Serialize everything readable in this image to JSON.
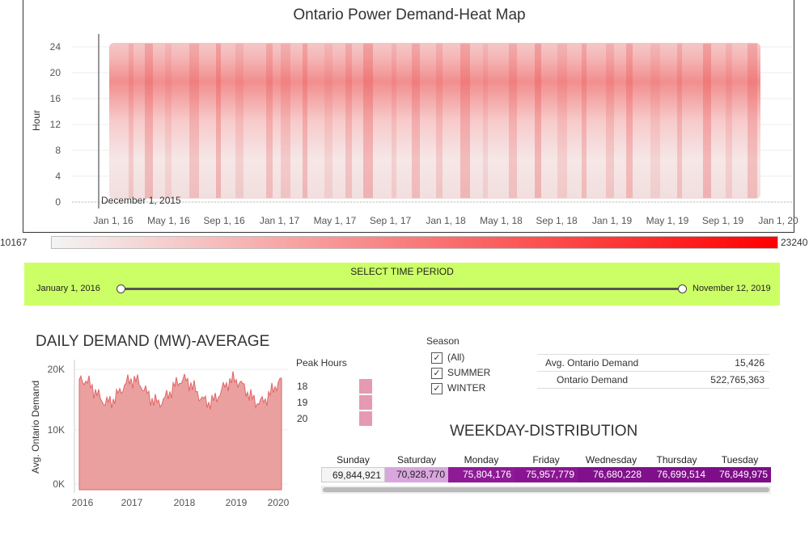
{
  "heatmap": {
    "title": "Ontario Power Demand-Heat Map",
    "y_axis_label": "Hour",
    "y_ticks": [
      "24",
      "20",
      "16",
      "12",
      "8",
      "4",
      "0"
    ],
    "x_ticks": [
      "Jan 1, 16",
      "May 1, 16",
      "Sep 1, 16",
      "Jan 1, 17",
      "May 1, 17",
      "Sep 1, 17",
      "Jan 1, 18",
      "May 1, 18",
      "Sep 1, 18",
      "Jan 1, 19",
      "May 1, 19",
      "Sep 1, 19",
      "Jan 1, 20"
    ],
    "reference_label": "December 1, 2015",
    "color_low": "#f4f4f4",
    "color_high": "#ff0000"
  },
  "color_legend": {
    "min": "10167",
    "max": "23240"
  },
  "time_filter": {
    "title": "SELECT TIME PERIOD",
    "start": "January 1, 2016",
    "end": "November 12, 2019",
    "panel_color": "#ccff66"
  },
  "daily_demand": {
    "title": "DAILY DEMAND (MW)-AVERAGE",
    "y_axis_label": "Avg. Ontario Demand",
    "y_ticks": [
      "20K",
      "10K",
      "0K"
    ],
    "x_ticks": [
      "2016",
      "2017",
      "2018",
      "2019",
      "2020"
    ],
    "area_color": "#eba0a0",
    "line_color": "#e06666"
  },
  "peak_hours": {
    "title": "Peak Hours",
    "items": [
      "18",
      "19",
      "20"
    ],
    "box_color": "#e59ab2"
  },
  "season_filter": {
    "title": "Season",
    "options": [
      {
        "label": "(All)",
        "checked": true
      },
      {
        "label": "SUMMER",
        "checked": true
      },
      {
        "label": "WINTER",
        "checked": true
      }
    ]
  },
  "summary": [
    {
      "label": "Avg. Ontario Demand",
      "value": "15,426"
    },
    {
      "label": "Ontario Demand",
      "value": "522,765,363"
    }
  ],
  "weekday": {
    "title": "WEEKDAY-DISTRIBUTION",
    "days": [
      {
        "day": "Sunday",
        "value": "69,844,921",
        "color": "#f4f4f4",
        "text": "#222"
      },
      {
        "day": "Saturday",
        "value": "70,928,770",
        "color": "#d9a6dd",
        "text": "#222"
      },
      {
        "day": "Monday",
        "value": "75,804,176",
        "color": "#8e1a96",
        "text": "#ffffff"
      },
      {
        "day": "Friday",
        "value": "75,957,779",
        "color": "#8a1592",
        "text": "#ffffff"
      },
      {
        "day": "Wednesday",
        "value": "76,680,228",
        "color": "#81108c",
        "text": "#ffffff"
      },
      {
        "day": "Thursday",
        "value": "76,699,514",
        "color": "#800f8b",
        "text": "#ffffff"
      },
      {
        "day": "Tuesday",
        "value": "76,849,975",
        "color": "#7d0d88",
        "text": "#ffffff"
      }
    ]
  }
}
